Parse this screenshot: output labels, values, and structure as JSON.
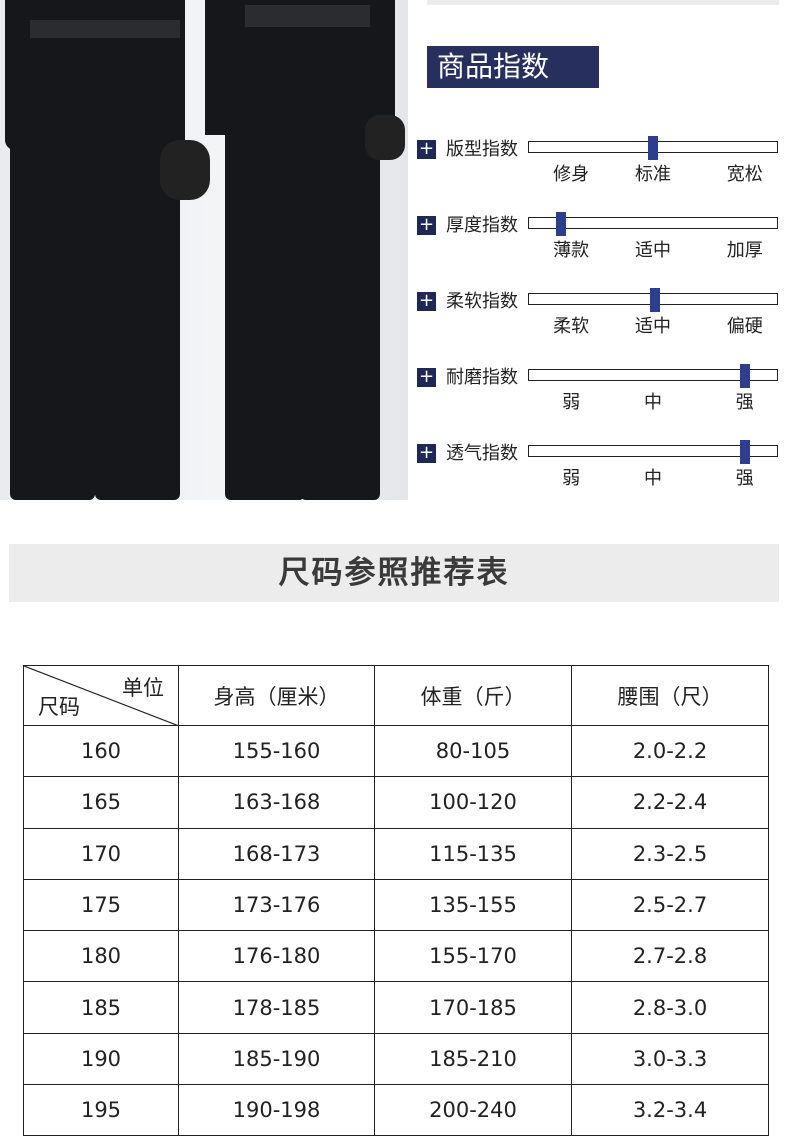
{
  "index_section": {
    "title": "商品指数 >>",
    "accent_color": "#262f5e",
    "marker_color": "#2d3f8c",
    "icon": "plus-icon",
    "rows": [
      {
        "name": "版型指数",
        "labels": [
          "修身",
          "标准",
          "宽松"
        ],
        "level_percent": 50
      },
      {
        "name": "厚度指数",
        "labels": [
          "薄款",
          "适中",
          "加厚"
        ],
        "level_percent": 13
      },
      {
        "name": "柔软指数",
        "labels": [
          "柔软",
          "适中",
          "偏硬"
        ],
        "level_percent": 51
      },
      {
        "name": "耐磨指数",
        "labels": [
          "弱",
          "中",
          "强"
        ],
        "level_percent": 87
      },
      {
        "name": "透气指数",
        "labels": [
          "弱",
          "中",
          "强"
        ],
        "level_percent": 87
      }
    ]
  },
  "size_table": {
    "title": "尺码参照推荐表",
    "corner_top": "单位",
    "corner_bottom": "尺码",
    "headers": [
      "身高（厘米）",
      "体重（斤）",
      "腰围（尺）"
    ],
    "rows": [
      [
        "160",
        "155-160",
        "80-105",
        "2.0-2.2"
      ],
      [
        "165",
        "163-168",
        "100-120",
        "2.2-2.4"
      ],
      [
        "170",
        "168-173",
        "115-135",
        "2.3-2.5"
      ],
      [
        "175",
        "173-176",
        "135-155",
        "2.5-2.7"
      ],
      [
        "180",
        "176-180",
        "155-170",
        "2.7-2.8"
      ],
      [
        "185",
        "178-185",
        "170-185",
        "2.8-3.0"
      ],
      [
        "190",
        "185-190",
        "185-210",
        "3.0-3.3"
      ],
      [
        "195",
        "190-198",
        "200-240",
        "3.2-3.4"
      ]
    ]
  }
}
